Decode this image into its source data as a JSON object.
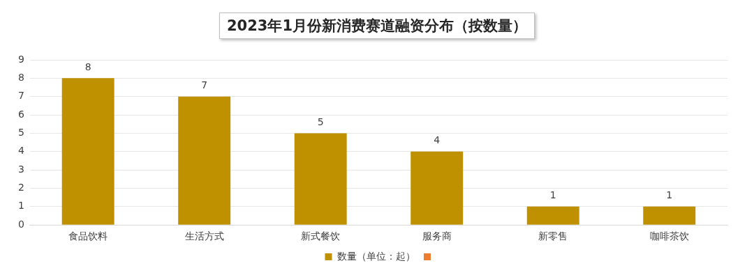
{
  "chart_data": {
    "type": "bar",
    "title": "2023年1月份新消费赛道融资分布（按数量）",
    "categories": [
      "食品饮料",
      "生活方式",
      "新式餐饮",
      "服务商",
      "新零售",
      "咖啡茶饮"
    ],
    "series": [
      {
        "name": "数量（单位：起）",
        "color": "#bf9000",
        "values": [
          8,
          7,
          5,
          4,
          1,
          1
        ]
      }
    ],
    "ylim": [
      0,
      9
    ],
    "yticks": [
      0,
      1,
      2,
      3,
      4,
      5,
      6,
      7,
      8,
      9
    ],
    "grid": "y",
    "legend": "bottom",
    "data_labels": true
  }
}
